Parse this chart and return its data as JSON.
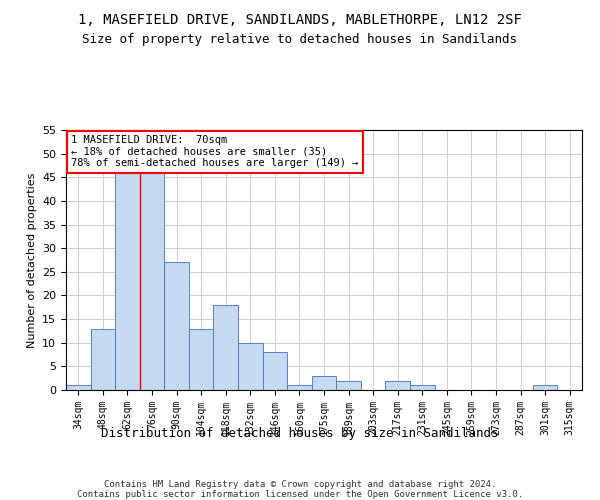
{
  "title": "1, MASEFIELD DRIVE, SANDILANDS, MABLETHORPE, LN12 2SF",
  "subtitle": "Size of property relative to detached houses in Sandilands",
  "xlabel": "Distribution of detached houses by size in Sandilands",
  "ylabel": "Number of detached properties",
  "bar_color": "#c5d9f1",
  "bar_edge_color": "#4472c4",
  "categories": [
    "34sqm",
    "48sqm",
    "62sqm",
    "76sqm",
    "90sqm",
    "104sqm",
    "118sqm",
    "132sqm",
    "146sqm",
    "160sqm",
    "175sqm",
    "189sqm",
    "203sqm",
    "217sqm",
    "231sqm",
    "245sqm",
    "259sqm",
    "273sqm",
    "287sqm",
    "301sqm",
    "315sqm"
  ],
  "values": [
    1,
    13,
    46,
    46,
    27,
    13,
    18,
    10,
    8,
    1,
    3,
    2,
    0,
    2,
    1,
    0,
    0,
    0,
    0,
    1,
    0
  ],
  "ylim": [
    0,
    55
  ],
  "yticks": [
    0,
    5,
    10,
    15,
    20,
    25,
    30,
    35,
    40,
    45,
    50,
    55
  ],
  "vline_x": 2.5,
  "annotation_text": "1 MASEFIELD DRIVE:  70sqm\n← 18% of detached houses are smaller (35)\n78% of semi-detached houses are larger (149) →",
  "footer_text": "Contains HM Land Registry data © Crown copyright and database right 2024.\nContains public sector information licensed under the Open Government Licence v3.0.",
  "grid_color": "#d0d0d0",
  "bg_color": "#ffffff",
  "annotation_box_color": "#ffffff",
  "annotation_box_edge_color": "#ff0000",
  "vline_color": "#ff0000",
  "title_fontsize": 10,
  "subtitle_fontsize": 9,
  "ylabel_fontsize": 8,
  "xlabel_fontsize": 9
}
